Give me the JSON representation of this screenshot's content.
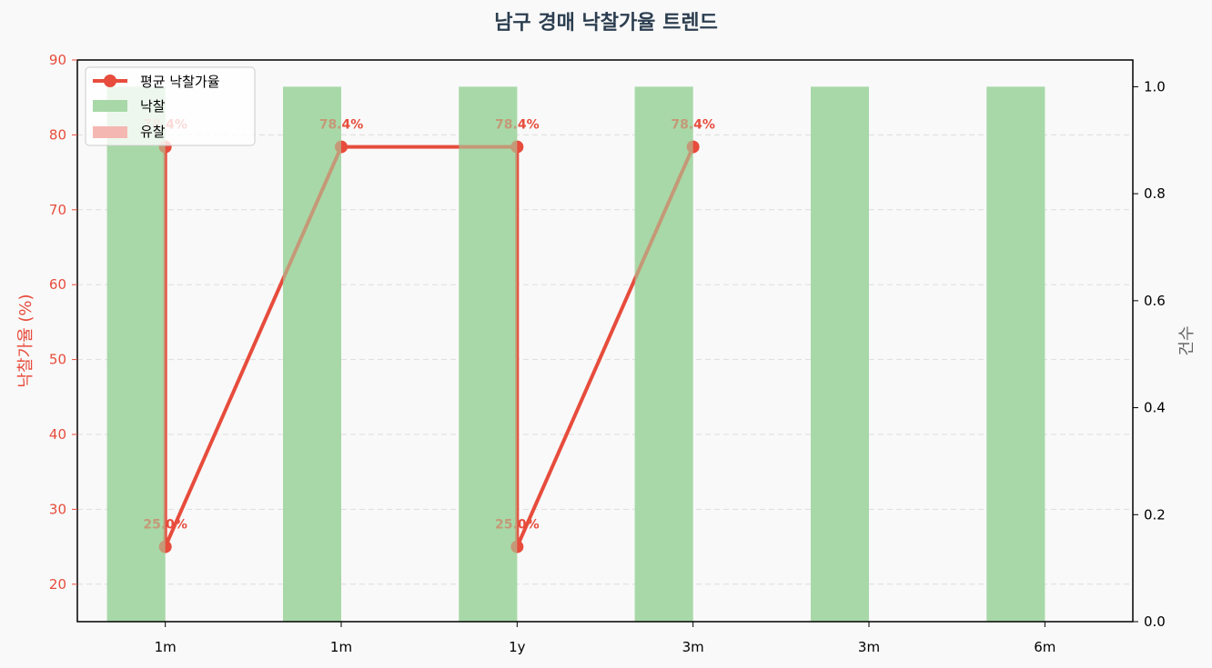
{
  "chart_data": {
    "type": "bar+line",
    "title": "남구 경매 낙찰가율 트렌드",
    "categories": [
      "1m",
      "1m",
      "1y",
      "3m",
      "3m",
      "6m"
    ],
    "line_series": {
      "name": "평균 낙찰가율",
      "values": [
        78.4,
        25.0,
        78.4,
        78.4,
        25.0,
        78.4
      ],
      "x_index": [
        0,
        0,
        1,
        2,
        2,
        3
      ],
      "labels": [
        "78.4%",
        "25.0%",
        "78.4%",
        "78.4%",
        "25.0%",
        "78.4%"
      ],
      "color": "#e74c3c"
    },
    "bar_series": [
      {
        "name": "낙찰",
        "values": [
          1,
          1,
          1,
          1,
          1,
          1
        ],
        "color": "#a8d8a8"
      },
      {
        "name": "유찰",
        "values": [
          0,
          0,
          0,
          0,
          0,
          0
        ],
        "color": "#f5b7b1"
      }
    ],
    "y_left": {
      "label": "낙찰가율 (%)",
      "range": [
        15,
        90
      ],
      "ticks": [
        "20",
        "30",
        "40",
        "50",
        "60",
        "70",
        "80",
        "90"
      ],
      "tick_values": [
        20,
        30,
        40,
        50,
        60,
        70,
        80,
        90
      ],
      "color": "#e74c3c"
    },
    "y_right": {
      "label": "건수",
      "range": [
        0,
        1.05
      ],
      "ticks": [
        "0.0",
        "0.2",
        "0.4",
        "0.6",
        "0.8",
        "1.0"
      ],
      "tick_values": [
        0,
        0.2,
        0.4,
        0.6,
        0.8,
        1.0
      ],
      "color": "#666666"
    },
    "grid": true,
    "legend_position": "top-left",
    "title_color": "#2c3e50"
  }
}
